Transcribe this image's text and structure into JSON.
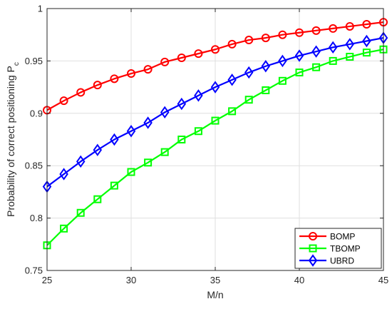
{
  "chart_data": {
    "type": "line",
    "xlabel": "M/n",
    "ylabel": "Probability of correct positioning P",
    "ylabel_sub": "c",
    "xlim": [
      25,
      45
    ],
    "ylim": [
      0.75,
      1.0
    ],
    "xticks": [
      25,
      30,
      35,
      40,
      45
    ],
    "xtick_labels": [
      "25",
      "30",
      "35",
      "40",
      "45"
    ],
    "yticks": [
      0.75,
      0.8,
      0.85,
      0.9,
      0.95,
      1.0
    ],
    "ytick_labels": [
      "0.75",
      "0.8",
      "0.85",
      "0.9",
      "0.95",
      "1"
    ],
    "grid": true,
    "legend_position": "bottom-right",
    "x": [
      25,
      26,
      27,
      28,
      29,
      30,
      31,
      32,
      33,
      34,
      35,
      36,
      37,
      38,
      39,
      40,
      41,
      42,
      43,
      44,
      45
    ],
    "series": [
      {
        "name": "BOMP",
        "color": "#ff0000",
        "marker": "circle",
        "values": [
          0.903,
          0.912,
          0.92,
          0.927,
          0.933,
          0.938,
          0.942,
          0.949,
          0.953,
          0.957,
          0.961,
          0.966,
          0.97,
          0.972,
          0.975,
          0.977,
          0.979,
          0.981,
          0.983,
          0.985,
          0.987
        ]
      },
      {
        "name": "TBOMP",
        "color": "#00ff00",
        "marker": "square",
        "values": [
          0.774,
          0.79,
          0.805,
          0.818,
          0.831,
          0.844,
          0.853,
          0.863,
          0.875,
          0.883,
          0.893,
          0.902,
          0.913,
          0.922,
          0.931,
          0.939,
          0.944,
          0.95,
          0.954,
          0.958,
          0.961
        ]
      },
      {
        "name": "UBRD",
        "color": "#0000ff",
        "marker": "diamond",
        "values": [
          0.83,
          0.842,
          0.854,
          0.865,
          0.875,
          0.883,
          0.891,
          0.901,
          0.909,
          0.917,
          0.925,
          0.932,
          0.939,
          0.945,
          0.95,
          0.955,
          0.959,
          0.963,
          0.966,
          0.969,
          0.972
        ]
      }
    ]
  }
}
